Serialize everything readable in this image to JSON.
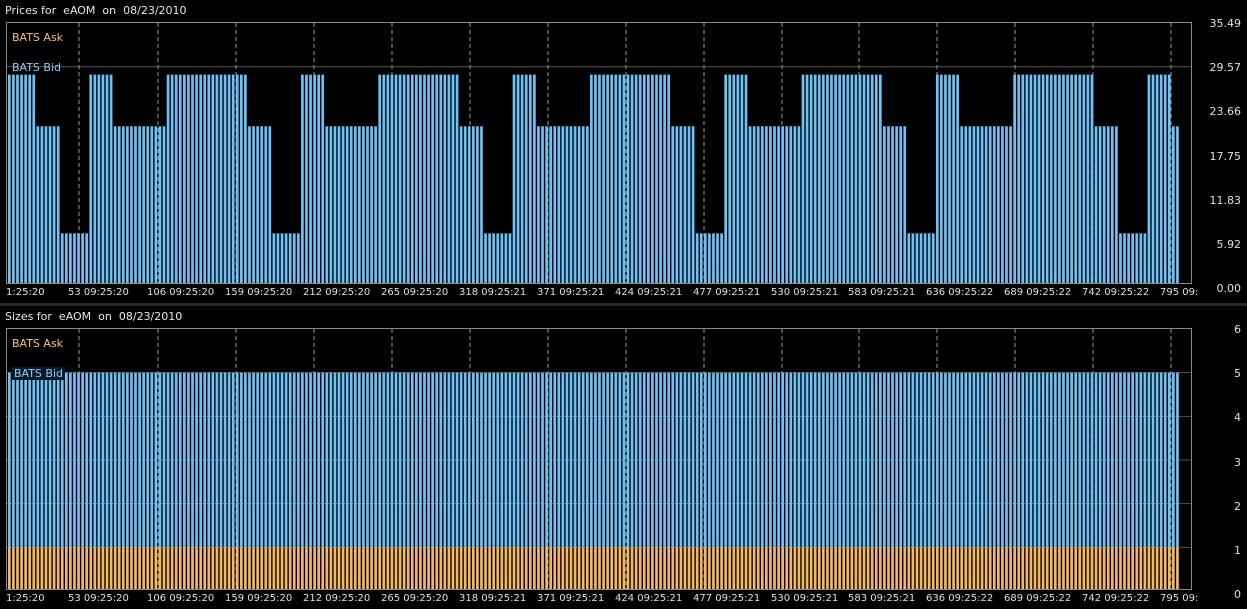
{
  "prices": {
    "title": "Prices for  eAOM  on  08/23/2010",
    "legend": {
      "ask": "BATS Ask",
      "bid": "BATS Bid"
    },
    "y_ticks": [
      "35.49",
      "29.57",
      "23.66",
      "17.75",
      "11.83",
      "5.92",
      "0.00"
    ],
    "x_ticks": [
      "1:25:20",
      "53 09:25:20",
      "106 09:25:20",
      "159 09:25:20",
      "212 09:25:20",
      "265 09:25:20",
      "318 09:25:21",
      "371 09:25:21",
      "424 09:25:21",
      "477 09:25:21",
      "530 09:25:21",
      "583 09:25:21",
      "636 09:25:22",
      "689 09:25:22",
      "742 09:25:22",
      "795 09:"
    ]
  },
  "sizes": {
    "title": "Sizes for  eAOM  on  08/23/2010",
    "legend": {
      "ask": "BATS Ask",
      "bid": "BATS Bid"
    },
    "y_ticks": [
      "6",
      "5",
      "4",
      "3",
      "2",
      "1",
      "0"
    ],
    "x_ticks": [
      "1:25:20",
      "53 09:25:20",
      "106 09:25:20",
      "159 09:25:20",
      "212 09:25:20",
      "265 09:25:20",
      "318 09:25:21",
      "371 09:25:21",
      "424 09:25:21",
      "477 09:25:21",
      "530 09:25:21",
      "583 09:25:21",
      "636 09:25:22",
      "689 09:25:22",
      "742 09:25:22",
      "795 09:"
    ]
  },
  "colors": {
    "bid": "#6ec1f5",
    "ask": "#f4b860",
    "background": "#000000",
    "grid": "#9a9a9a"
  },
  "chart_data": [
    {
      "type": "bar",
      "title": "Prices for  eAOM  on  08/23/2010",
      "ylim": [
        0,
        35.49
      ],
      "series": [
        {
          "name": "BATS Bid",
          "values": [
            28.5,
            21.5,
            7.0,
            28.5,
            21.5,
            7.0,
            28.5,
            21.5
          ]
        },
        {
          "name": "BATS Ask",
          "values": []
        }
      ]
    },
    {
      "type": "bar",
      "title": "Sizes for  eAOM  on  08/23/2010",
      "ylim": [
        0,
        6
      ],
      "series": [
        {
          "name": "BATS Bid",
          "values": [
            5,
            5,
            5,
            5,
            5,
            5,
            5,
            5
          ]
        },
        {
          "name": "BATS Ask",
          "values": [
            1,
            1,
            1,
            1,
            1,
            1,
            1,
            1
          ]
        }
      ]
    }
  ]
}
